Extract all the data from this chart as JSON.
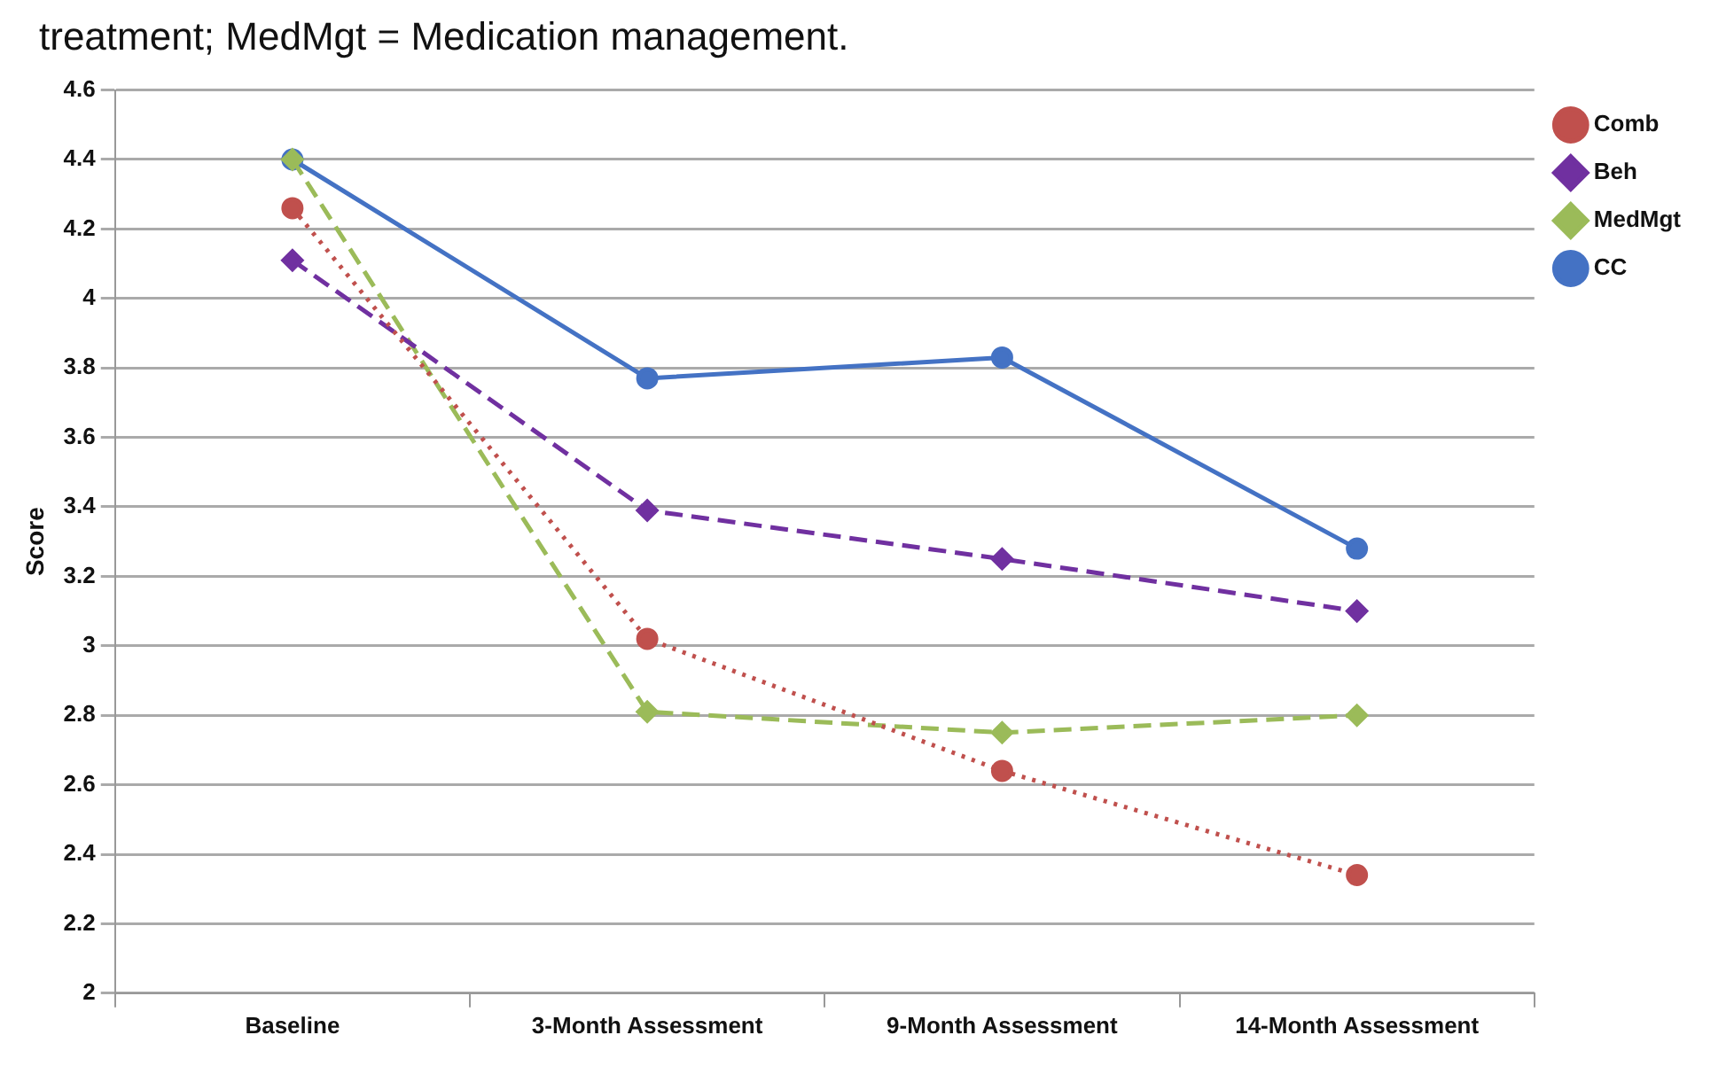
{
  "chart_data": {
    "type": "line",
    "annotations": [
      "treatment; MedMgt = Medication management."
    ],
    "ylabel": "Score",
    "categories": [
      "Baseline",
      "3-Month Assessment",
      "9-Month Assessment",
      "14-Month Assessment"
    ],
    "series": [
      {
        "name": "CC",
        "color": "#4472c4",
        "values": [
          4.4,
          3.77,
          3.83,
          3.28
        ],
        "marker": "circle",
        "line_style": "solid"
      },
      {
        "name": "MedMgt",
        "color": "#9bbb59",
        "values": [
          4.4,
          2.81,
          2.75,
          2.8
        ],
        "marker": "diamond",
        "line_style": "dashed"
      },
      {
        "name": "Beh",
        "color": "#7030a0",
        "values": [
          4.11,
          3.39,
          3.25,
          3.1
        ],
        "marker": "diamond",
        "line_style": "dashed"
      },
      {
        "name": "Comb",
        "color": "#c0504d",
        "values": [
          4.26,
          3.02,
          2.64,
          2.34
        ],
        "marker": "circle",
        "line_style": "dotted"
      }
    ],
    "ylim": [
      2,
      4.6
    ],
    "yticks": [
      2,
      2.2,
      2.4,
      2.6,
      2.8,
      3,
      3.2,
      3.4,
      3.6,
      3.8,
      4,
      4.2,
      4.4,
      4.6
    ],
    "grid": "y",
    "legend": "right"
  }
}
